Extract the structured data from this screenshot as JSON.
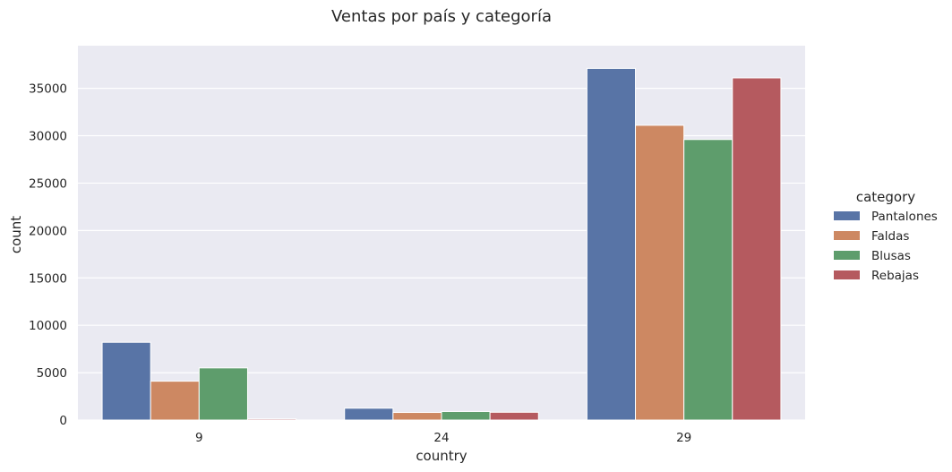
{
  "chart_data": {
    "type": "bar",
    "title": "Ventas por país y categoría",
    "xlabel": "country",
    "ylabel": "count",
    "categories": [
      "9",
      "24",
      "29"
    ],
    "series": [
      {
        "name": "Pantalones",
        "values": [
          8200,
          1250,
          37100
        ]
      },
      {
        "name": "Faldas",
        "values": [
          4100,
          800,
          31100
        ]
      },
      {
        "name": "Blusas",
        "values": [
          5500,
          900,
          29600
        ]
      },
      {
        "name": "Rebajas",
        "values": [
          120,
          820,
          36100
        ]
      }
    ],
    "ylim": [
      0,
      39500
    ],
    "yticks": [
      0,
      5000,
      10000,
      15000,
      20000,
      25000,
      30000,
      35000
    ],
    "ytick_labels": [
      "0",
      "5000",
      "10000",
      "15000",
      "20000",
      "25000",
      "30000",
      "35000"
    ],
    "grid": true,
    "legend": {
      "title": "category",
      "placement": "right"
    },
    "colors": {
      "Pantalones": "#5874a6",
      "Faldas": "#cd8862",
      "Blusas": "#5e9d6c",
      "Rebajas": "#b55a5f",
      "plot_background": "#eaeaf2",
      "grid": "#ffffff"
    }
  }
}
